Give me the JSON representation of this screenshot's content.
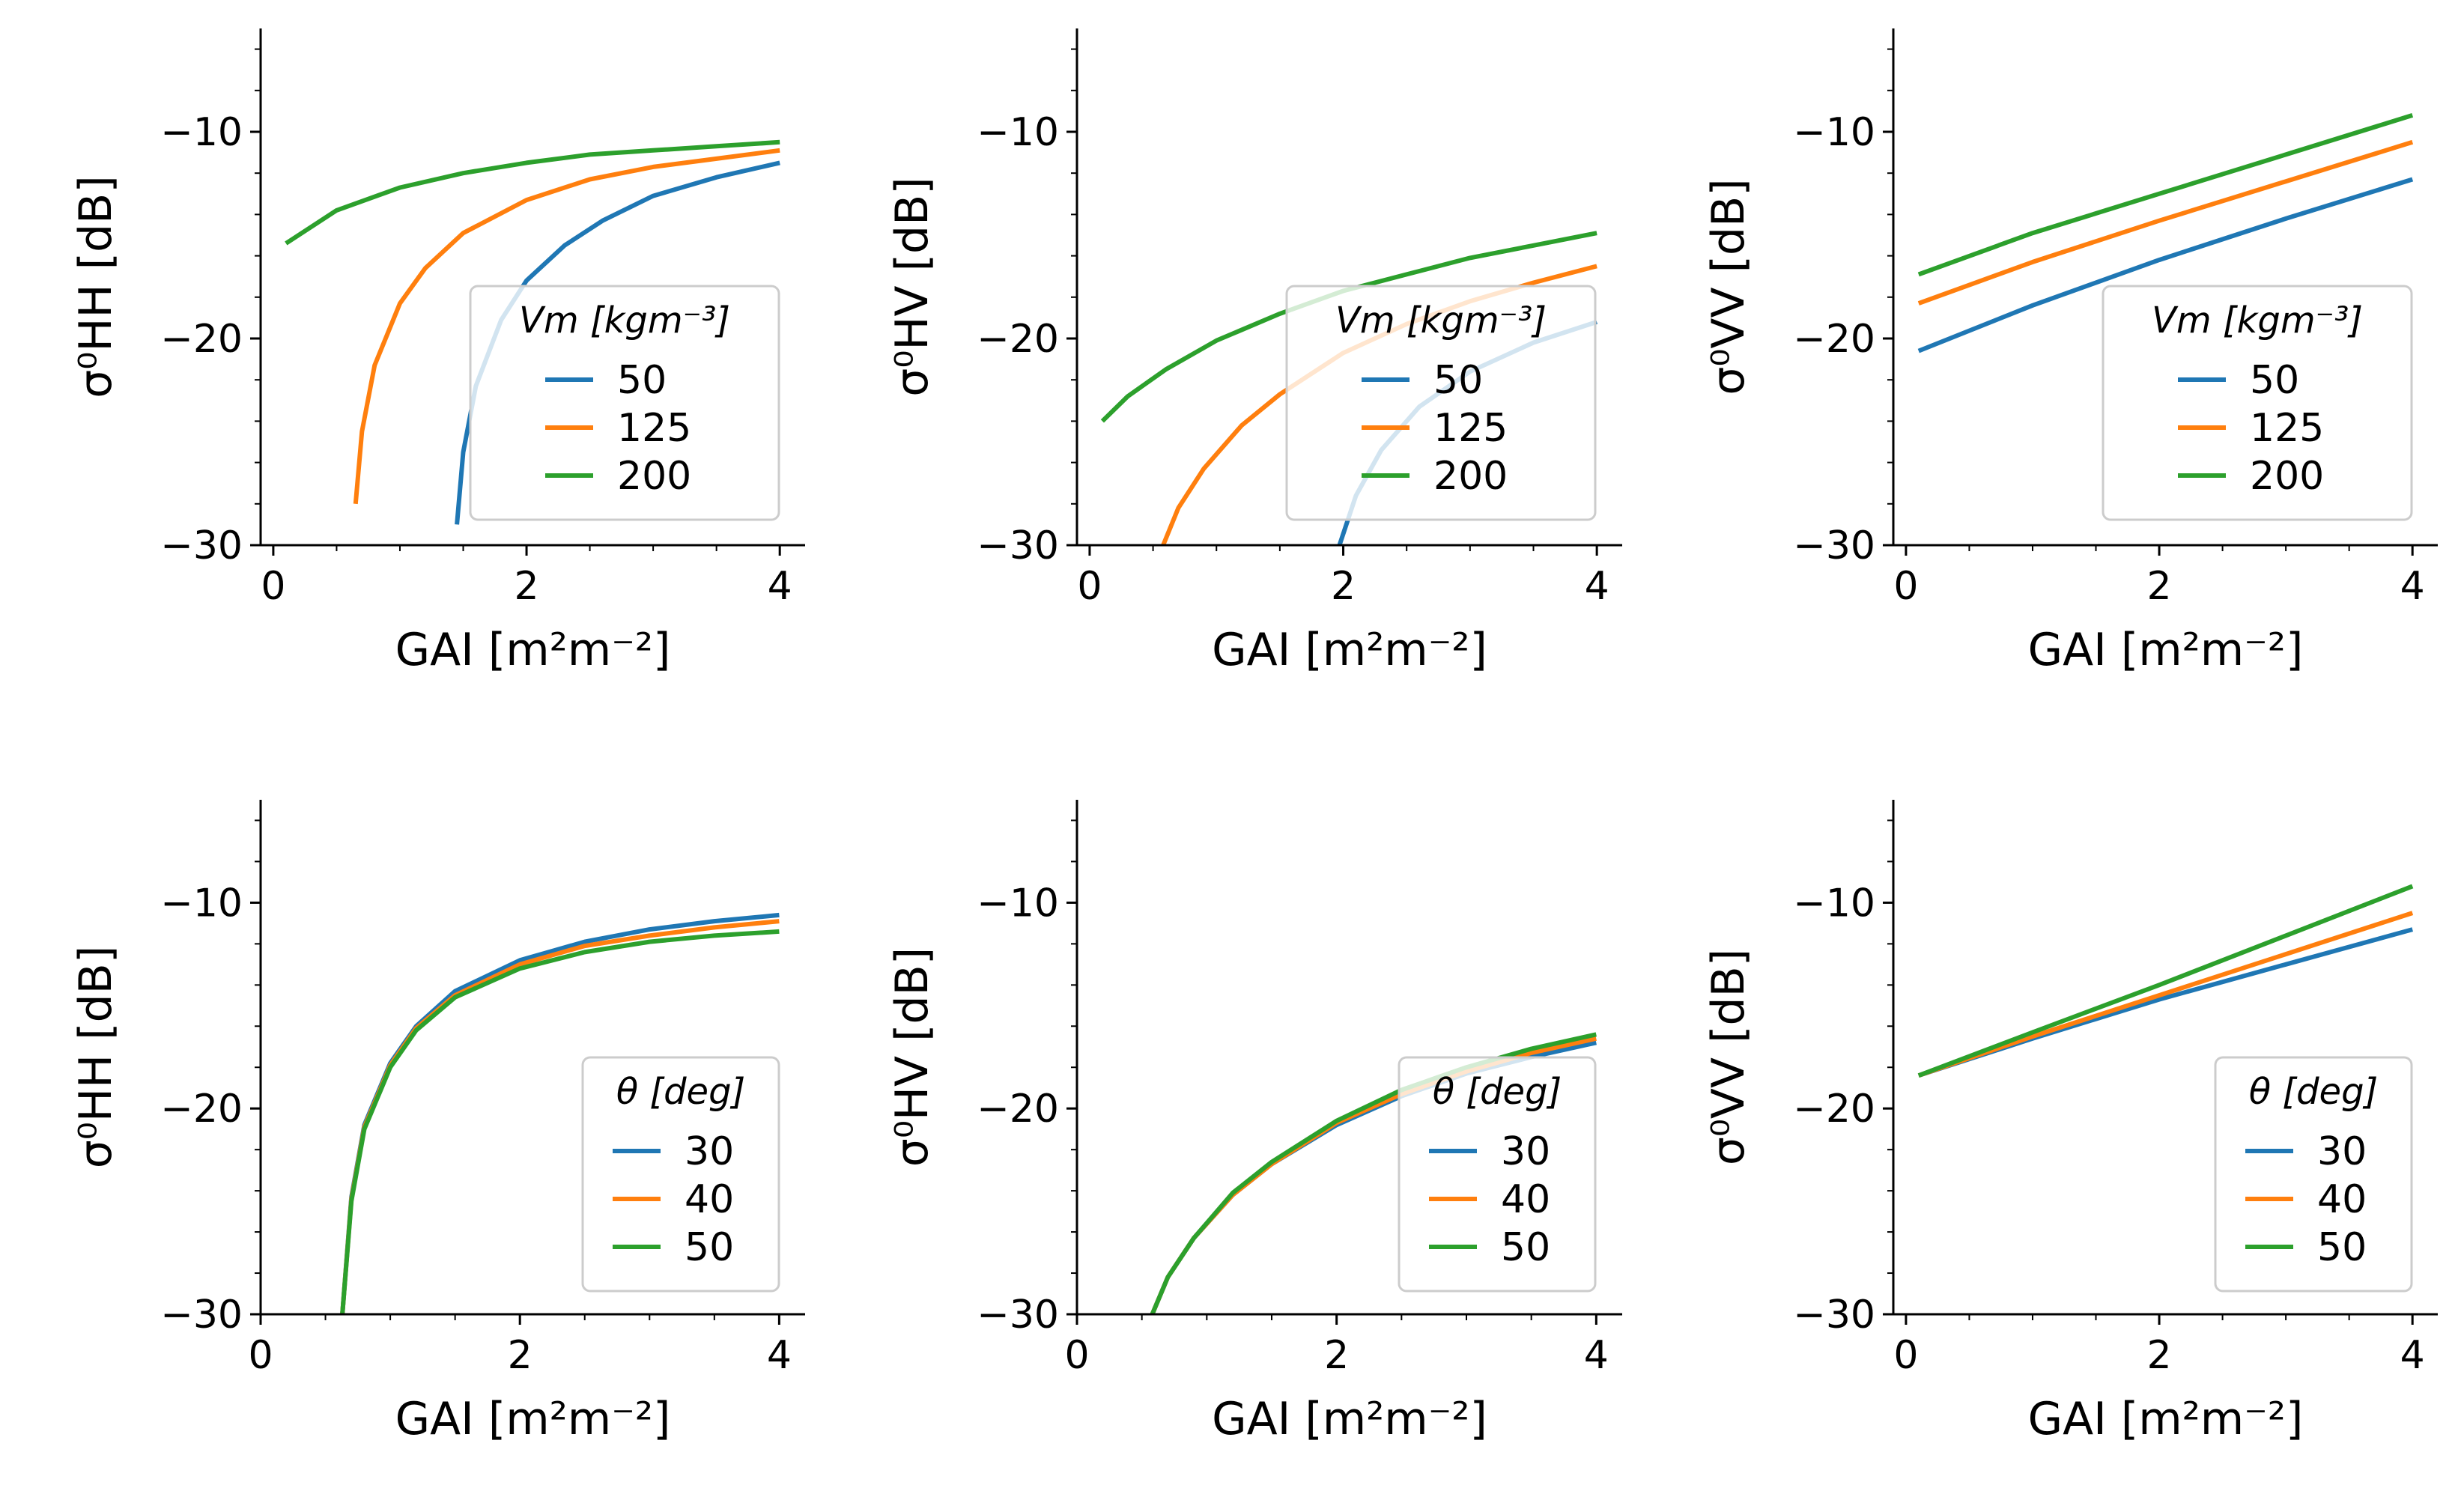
{
  "colors": {
    "series1": "#1f77b4",
    "series2": "#ff7f0e",
    "series3": "#2ca02c"
  },
  "chart_data": [
    {
      "type": "line",
      "xlabel": "GAI [m²m⁻²]",
      "ylabel": "σ⁰HH [dB]",
      "xlim": [
        -0.1,
        4.2
      ],
      "ylim": [
        -30,
        -5
      ],
      "xticks": [
        "0",
        "2",
        "4"
      ],
      "yticks": [
        "−10",
        "−20",
        "−30"
      ],
      "legend": {
        "title": "Vm [kgm⁻³]",
        "placement": "right"
      },
      "series": [
        {
          "name": "50",
          "x": [
            1.45,
            1.5,
            1.6,
            1.8,
            2.0,
            2.3,
            2.6,
            3.0,
            3.5,
            4.0
          ],
          "y": [
            -29,
            -25.5,
            -22.3,
            -19.1,
            -17.2,
            -15.5,
            -14.3,
            -13.1,
            -12.2,
            -11.5
          ]
        },
        {
          "name": "125",
          "x": [
            0.65,
            0.7,
            0.8,
            1.0,
            1.2,
            1.5,
            2.0,
            2.5,
            3.0,
            3.5,
            4.0
          ],
          "y": [
            -28,
            -24.5,
            -21.3,
            -18.3,
            -16.6,
            -14.9,
            -13.3,
            -12.3,
            -11.7,
            -11.3,
            -10.9
          ]
        },
        {
          "name": "200",
          "x": [
            0.1,
            0.5,
            1.0,
            1.5,
            2.0,
            2.5,
            3.0,
            3.5,
            4.0
          ],
          "y": [
            -15.4,
            -13.8,
            -12.7,
            -12.0,
            -11.5,
            -11.1,
            -10.9,
            -10.7,
            -10.5
          ]
        }
      ]
    },
    {
      "type": "line",
      "xlabel": "GAI [m²m⁻²]",
      "ylabel": "σ⁰HV [dB]",
      "xlim": [
        -0.1,
        4.2
      ],
      "ylim": [
        -30,
        -5
      ],
      "xticks": [
        "0",
        "2",
        "4"
      ],
      "yticks": [
        "−10",
        "−20",
        "−30"
      ],
      "legend": {
        "title": "Vm [kgm⁻³]",
        "placement": "right"
      },
      "series": [
        {
          "name": "50",
          "x": [
            1.97,
            2.1,
            2.3,
            2.6,
            3.0,
            3.5,
            4.0
          ],
          "y": [
            -30,
            -27.6,
            -25.4,
            -23.3,
            -21.6,
            -20.2,
            -19.2
          ]
        },
        {
          "name": "125",
          "x": [
            0.58,
            0.7,
            0.9,
            1.2,
            1.5,
            2.0,
            2.5,
            3.0,
            3.5,
            4.0
          ],
          "y": [
            -30,
            -28.2,
            -26.3,
            -24.2,
            -22.7,
            -20.7,
            -19.3,
            -18.2,
            -17.3,
            -16.5
          ]
        },
        {
          "name": "200",
          "x": [
            0.1,
            0.3,
            0.6,
            1.0,
            1.5,
            2.0,
            2.5,
            3.0,
            3.5,
            4.0
          ],
          "y": [
            -24,
            -22.8,
            -21.5,
            -20.1,
            -18.8,
            -17.7,
            -16.9,
            -16.1,
            -15.5,
            -14.9
          ]
        }
      ]
    },
    {
      "type": "line",
      "xlabel": "GAI [m²m⁻²]",
      "ylabel": "σ⁰VV [dB]",
      "xlim": [
        -0.1,
        4.2
      ],
      "ylim": [
        -30,
        -5
      ],
      "xticks": [
        "0",
        "2",
        "4"
      ],
      "yticks": [
        "−10",
        "−20",
        "−30"
      ],
      "legend": {
        "title": "Vm [kgm⁻³]",
        "placement": "right"
      },
      "series": [
        {
          "name": "50",
          "x": [
            0.1,
            1.0,
            2.0,
            3.0,
            4.0
          ],
          "y": [
            -20.6,
            -18.4,
            -16.2,
            -14.2,
            -12.3
          ]
        },
        {
          "name": "125",
          "x": [
            0.1,
            1.0,
            2.0,
            3.0,
            4.0
          ],
          "y": [
            -18.3,
            -16.3,
            -14.3,
            -12.4,
            -10.5
          ]
        },
        {
          "name": "200",
          "x": [
            0.1,
            1.0,
            2.0,
            3.0,
            4.0
          ],
          "y": [
            -16.9,
            -14.9,
            -13.0,
            -11.1,
            -9.2
          ]
        }
      ]
    },
    {
      "type": "line",
      "xlabel": "GAI [m²m⁻²]",
      "ylabel": "σ⁰HH [dB]",
      "xlim": [
        0,
        4.2
      ],
      "ylim": [
        -30,
        -5
      ],
      "xticks": [
        "0",
        "2",
        "4"
      ],
      "yticks": [
        "−10",
        "−20",
        "−30"
      ],
      "legend": {
        "title": "θ [deg]",
        "placement": "lower right"
      },
      "series": [
        {
          "name": "30",
          "x": [
            0.63,
            0.7,
            0.8,
            1.0,
            1.2,
            1.5,
            2.0,
            2.5,
            3.0,
            3.5,
            4.0
          ],
          "y": [
            -30,
            -24.3,
            -20.8,
            -17.8,
            -16.0,
            -14.3,
            -12.8,
            -11.9,
            -11.3,
            -10.9,
            -10.6
          ]
        },
        {
          "name": "40",
          "x": [
            0.63,
            0.7,
            0.8,
            1.0,
            1.2,
            1.5,
            2.0,
            2.5,
            3.0,
            3.5,
            4.0
          ],
          "y": [
            -30,
            -24.4,
            -20.9,
            -17.9,
            -16.1,
            -14.5,
            -13.0,
            -12.1,
            -11.6,
            -11.2,
            -10.9
          ]
        },
        {
          "name": "50",
          "x": [
            0.63,
            0.7,
            0.8,
            1.0,
            1.2,
            1.5,
            2.0,
            2.5,
            3.0,
            3.5,
            4.0
          ],
          "y": [
            -30,
            -24.5,
            -21.0,
            -18.0,
            -16.2,
            -14.6,
            -13.2,
            -12.4,
            -11.9,
            -11.6,
            -11.4
          ]
        }
      ]
    },
    {
      "type": "line",
      "xlabel": "GAI [m²m⁻²]",
      "ylabel": "σ⁰HV [dB]",
      "xlim": [
        0,
        4.2
      ],
      "ylim": [
        -30,
        -5
      ],
      "xticks": [
        "0",
        "2",
        "4"
      ],
      "yticks": [
        "−10",
        "−20",
        "−30"
      ],
      "legend": {
        "title": "θ [deg]",
        "placement": "lower right"
      },
      "series": [
        {
          "name": "30",
          "x": [
            0.58,
            0.7,
            0.9,
            1.2,
            1.5,
            2.0,
            2.5,
            3.0,
            3.5,
            4.0
          ],
          "y": [
            -30,
            -28.2,
            -26.3,
            -24.2,
            -22.7,
            -20.8,
            -19.4,
            -18.3,
            -17.5,
            -16.8
          ]
        },
        {
          "name": "40",
          "x": [
            0.58,
            0.7,
            0.9,
            1.2,
            1.5,
            2.0,
            2.5,
            3.0,
            3.5,
            4.0
          ],
          "y": [
            -30,
            -28.2,
            -26.3,
            -24.2,
            -22.7,
            -20.7,
            -19.3,
            -18.2,
            -17.3,
            -16.6
          ]
        },
        {
          "name": "50",
          "x": [
            0.58,
            0.7,
            0.9,
            1.2,
            1.5,
            2.0,
            2.5,
            3.0,
            3.5,
            4.0
          ],
          "y": [
            -30,
            -28.2,
            -26.3,
            -24.1,
            -22.6,
            -20.6,
            -19.1,
            -18.0,
            -17.1,
            -16.4
          ]
        }
      ]
    },
    {
      "type": "line",
      "xlabel": "GAI [m²m⁻²]",
      "ylabel": "σ⁰VV [dB]",
      "xlim": [
        -0.1,
        4.2
      ],
      "ylim": [
        -30,
        -5
      ],
      "xticks": [
        "0",
        "2",
        "4"
      ],
      "yticks": [
        "−10",
        "−20",
        "−30"
      ],
      "legend": {
        "title": "θ [deg]",
        "placement": "lower right"
      },
      "series": [
        {
          "name": "30",
          "x": [
            0.1,
            1.0,
            2.0,
            3.0,
            4.0
          ],
          "y": [
            -18.4,
            -16.6,
            -14.7,
            -13.0,
            -11.3
          ]
        },
        {
          "name": "40",
          "x": [
            0.1,
            1.0,
            2.0,
            3.0,
            4.0
          ],
          "y": [
            -18.4,
            -16.5,
            -14.5,
            -12.5,
            -10.5
          ]
        },
        {
          "name": "50",
          "x": [
            0.1,
            1.0,
            2.0,
            3.0,
            4.0
          ],
          "y": [
            -18.4,
            -16.3,
            -14.0,
            -11.6,
            -9.2
          ]
        }
      ]
    }
  ]
}
